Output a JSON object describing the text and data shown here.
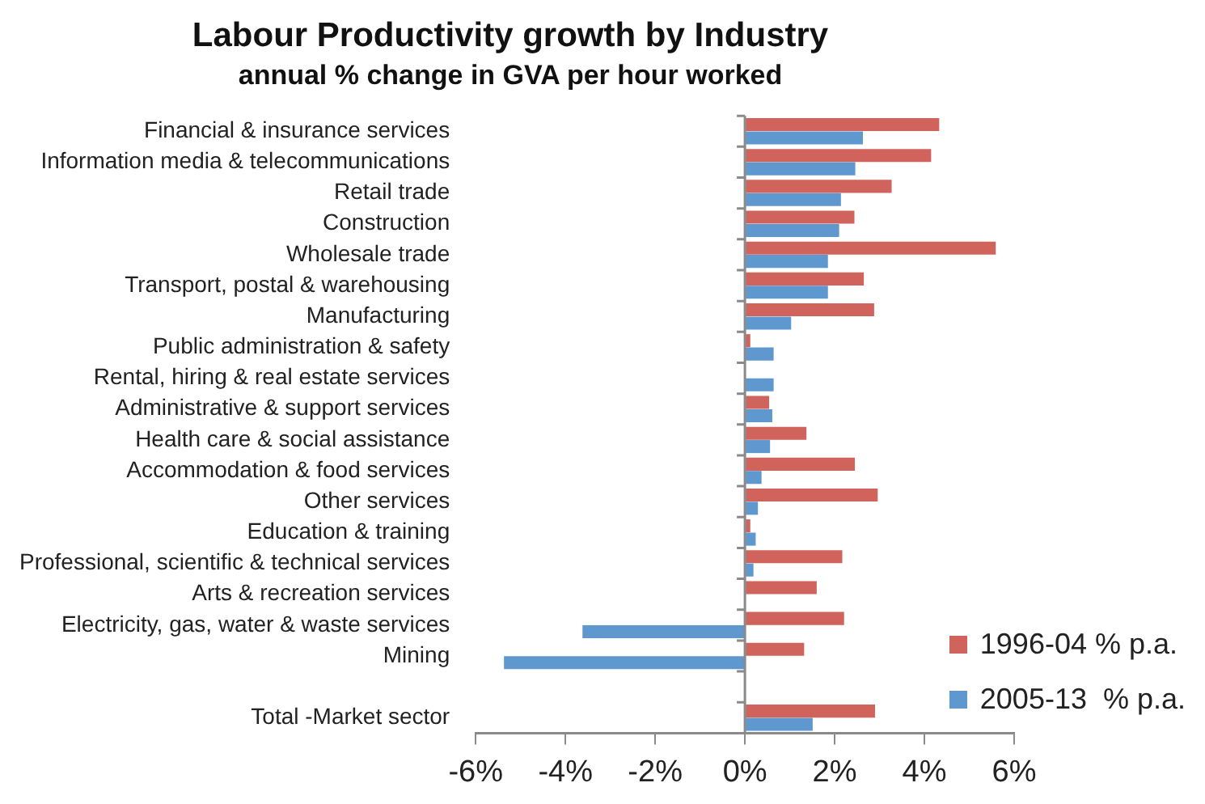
{
  "chart_data": {
    "type": "bar",
    "orientation": "horizontal",
    "title": "Labour Productivity growth by Industry",
    "subtitle": "annual % change in GVA per hour worked",
    "categories": [
      "Financial & insurance services",
      "Information media & telecommunications",
      "Retail trade",
      "Construction",
      "Wholesale trade",
      "Transport, postal & warehousing",
      "Manufacturing",
      "Public administration & safety",
      "Rental, hiring & real estate services",
      "Administrative & support services",
      "Health care & social assistance",
      "Accommodation & food services",
      "Other services",
      "Education & training",
      "Professional, scientific & technical services",
      "Arts & recreation services",
      "Electricity, gas, water & waste services",
      "Mining",
      null,
      "Total -Market sector"
    ],
    "series": [
      {
        "name": "1996-04 % p.a.",
        "color": "#d0635c",
        "values": [
          4.33,
          4.15,
          3.27,
          2.44,
          5.59,
          2.65,
          2.88,
          0.12,
          0,
          0.54,
          1.37,
          2.45,
          2.96,
          0.12,
          2.17,
          1.6,
          2.21,
          1.32,
          null,
          2.9
        ]
      },
      {
        "name": "2005-13  % p.a.",
        "color": "#5f97cf",
        "values": [
          2.63,
          2.46,
          2.14,
          2.1,
          1.85,
          1.85,
          1.03,
          0.64,
          0.64,
          0.61,
          0.56,
          0.37,
          0.29,
          0.24,
          0.19,
          0,
          -3.62,
          -5.37,
          null,
          1.51
        ]
      }
    ],
    "xlim": [
      -6,
      6
    ],
    "xticks": [
      {
        "value": -6,
        "label": "-6%"
      },
      {
        "value": -4,
        "label": "-4%"
      },
      {
        "value": -2,
        "label": "-2%"
      },
      {
        "value": 0,
        "label": "0%"
      },
      {
        "value": 2,
        "label": "2%"
      },
      {
        "value": 4,
        "label": "4%"
      },
      {
        "value": 6,
        "label": "6%"
      }
    ],
    "legend": "bottom right"
  }
}
